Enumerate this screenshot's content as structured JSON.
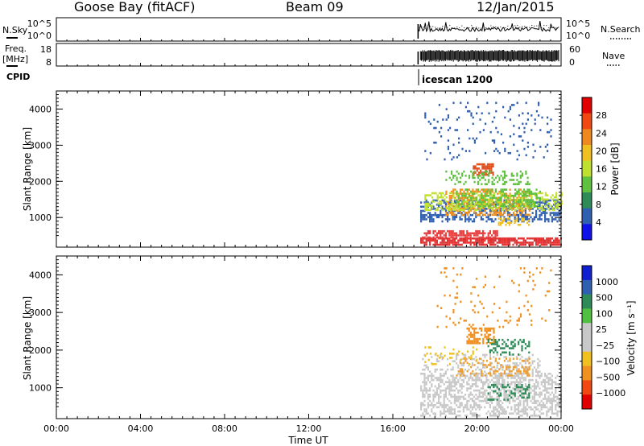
{
  "header": {
    "station": "Goose Bay (fitACF)",
    "beam": "Beam 09",
    "date": "12/Jan/2015"
  },
  "top_panels": {
    "nsky_label": "N.Sky",
    "nsky_ticks": [
      "10^5",
      "10^0"
    ],
    "nsearch_ticks": [
      "10^5",
      "10^0"
    ],
    "nsearch_label": "N.Search",
    "freq_label_1": "Freq.",
    "freq_label_2": "[MHz]",
    "freq_ticks": [
      "18",
      "8"
    ],
    "nave_ticks": [
      "60",
      "0"
    ],
    "nave_label": "Nave",
    "cpid_label": "CPID",
    "cpid_value": "icescan 1200"
  },
  "chart_data": [
    {
      "type": "heatmap",
      "name": "Power",
      "ylabel": "Slant Range [km]",
      "ylim": [
        180,
        4500
      ],
      "yticks": [
        "1000",
        "2000",
        "3000",
        "4000"
      ],
      "xlim_hours": [
        0,
        24
      ],
      "colorbar_label": "Power [dB]",
      "colorbar_ticks": [
        "28",
        "24",
        "20",
        "16",
        "12",
        "8",
        "4"
      ],
      "colorbar_colors": [
        "#e00000",
        "#f04810",
        "#f08820",
        "#f0c020",
        "#c0e030",
        "#60c040",
        "#2e8b57",
        "#2f5fb0",
        "#1010e8"
      ],
      "data_start_hour": 17.2,
      "blobs": [
        {
          "x0": 17.3,
          "x1": 24.0,
          "r0": 250,
          "r1": 450,
          "color": "#e03030",
          "density": 0.8
        },
        {
          "x0": 17.3,
          "x1": 21.0,
          "r0": 450,
          "r1": 650,
          "color": "#e84040",
          "density": 0.6
        },
        {
          "x0": 17.3,
          "x1": 24.0,
          "r0": 900,
          "r1": 1500,
          "color": "#2f5fb0",
          "density": 0.5
        },
        {
          "x0": 18.5,
          "x1": 22.5,
          "r0": 1100,
          "r1": 1800,
          "color": "#f09020",
          "density": 0.5
        },
        {
          "x0": 17.5,
          "x1": 24.0,
          "r0": 1200,
          "r1": 1700,
          "color": "#c0e030",
          "density": 0.45
        },
        {
          "x0": 19.0,
          "x1": 23.0,
          "r0": 1300,
          "r1": 1800,
          "color": "#60c040",
          "density": 0.4
        },
        {
          "x0": 19.8,
          "x1": 20.8,
          "r0": 2200,
          "r1": 2500,
          "color": "#e05020",
          "density": 0.6
        },
        {
          "x0": 18.5,
          "x1": 22.5,
          "r0": 1900,
          "r1": 2300,
          "color": "#60c040",
          "density": 0.3
        },
        {
          "x0": 17.5,
          "x1": 23.5,
          "r0": 2600,
          "r1": 4200,
          "color": "#2f5fb0",
          "density": 0.06
        },
        {
          "x0": 21.0,
          "x1": 22.5,
          "r0": 800,
          "r1": 1000,
          "color": "#f0c020",
          "density": 0.4
        }
      ]
    },
    {
      "type": "heatmap",
      "name": "Velocity",
      "ylabel": "Slant Range [km]",
      "ylim": [
        180,
        4500
      ],
      "yticks": [
        "1000",
        "2000",
        "3000",
        "4000"
      ],
      "xlim_hours": [
        0,
        24
      ],
      "xticks": [
        "00:00",
        "04:00",
        "08:00",
        "12:00",
        "16:00",
        "20:00",
        "00:00"
      ],
      "xlabel": "Time UT",
      "colorbar_label": "Velocity [m s⁻¹]",
      "colorbar_ticks": [
        "1000",
        "500",
        "100",
        "25",
        "−25",
        "−100",
        "−500",
        "−1000"
      ],
      "colorbar_colors": [
        "#1020d0",
        "#2f5fb0",
        "#2e8b57",
        "#50c040",
        "#c8c8c8",
        "#c8c8c8",
        "#f0c020",
        "#f09020",
        "#f04810",
        "#e00000"
      ],
      "data_start_hour": 17.2,
      "blobs": [
        {
          "x0": 17.3,
          "x1": 24.0,
          "r0": 250,
          "r1": 1400,
          "color": "#c8c8c8",
          "density": 0.5
        },
        {
          "x0": 17.3,
          "x1": 23.0,
          "r0": 1400,
          "r1": 1900,
          "color": "#c8c8c8",
          "density": 0.3
        },
        {
          "x0": 19.0,
          "x1": 22.5,
          "r0": 1300,
          "r1": 1800,
          "color": "#f0a030",
          "density": 0.3
        },
        {
          "x0": 19.5,
          "x1": 20.8,
          "r0": 2200,
          "r1": 2600,
          "color": "#f09020",
          "density": 0.5
        },
        {
          "x0": 20.5,
          "x1": 22.5,
          "r0": 1900,
          "r1": 2300,
          "color": "#2e8b57",
          "density": 0.3
        },
        {
          "x0": 20.5,
          "x1": 22.5,
          "r0": 700,
          "r1": 1100,
          "color": "#2e8b57",
          "density": 0.3
        },
        {
          "x0": 18.0,
          "x1": 23.5,
          "r0": 2600,
          "r1": 4200,
          "color": "#f09020",
          "density": 0.05
        },
        {
          "x0": 17.5,
          "x1": 20.0,
          "r0": 1600,
          "r1": 2100,
          "color": "#f0c020",
          "density": 0.15
        }
      ]
    }
  ]
}
